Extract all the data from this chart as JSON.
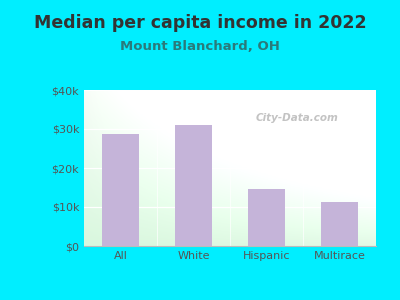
{
  "title": "Median per capita income in 2022",
  "subtitle": "Mount Blanchard, OH",
  "categories": [
    "All",
    "White",
    "Hispanic",
    "Multirace"
  ],
  "values": [
    28800,
    31000,
    14500,
    11200
  ],
  "bar_color": "#c5b4d9",
  "background_outer": "#00eeff",
  "title_color": "#333333",
  "subtitle_color": "#2a7a7a",
  "tick_color": "#555555",
  "ylim": [
    0,
    40000
  ],
  "yticks": [
    0,
    10000,
    20000,
    30000,
    40000
  ],
  "ytick_labels": [
    "$0",
    "$10k",
    "$20k",
    "$30k",
    "$40k"
  ],
  "watermark": "City-Data.com",
  "title_fontsize": 12.5,
  "subtitle_fontsize": 9.5,
  "tick_fontsize": 8
}
